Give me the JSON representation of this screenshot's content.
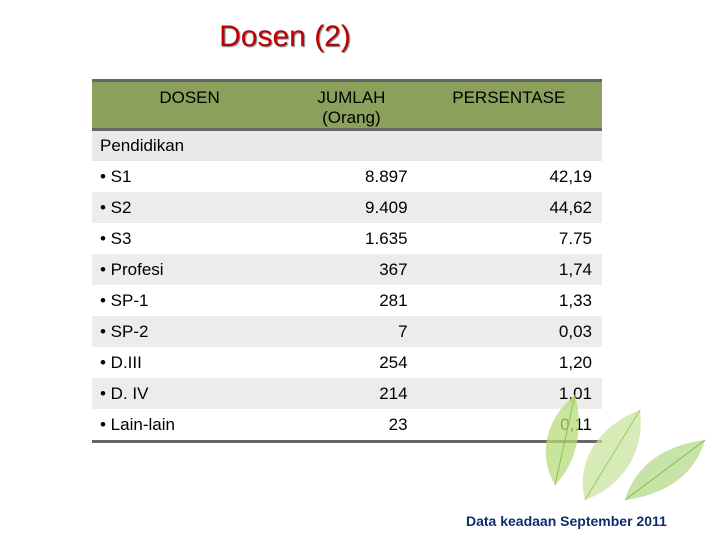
{
  "title": "Dosen (2)",
  "table": {
    "headers": [
      "DOSEN",
      "JUMLAH (Orang)",
      "PERSENTASE"
    ],
    "subheader": "Pendidikan",
    "rows": [
      {
        "label": "• S1",
        "jumlah": "8.897",
        "persen": "42,19"
      },
      {
        "label": "• S2",
        "jumlah": "9.409",
        "persen": "44,62"
      },
      {
        "label": "• S3",
        "jumlah": "1.635",
        "persen": "7.75"
      },
      {
        "label": "• Profesi",
        "jumlah": "367",
        "persen": "1,74"
      },
      {
        "label": "• SP-1",
        "jumlah": "281",
        "persen": "1,33"
      },
      {
        "label": "• SP-2",
        "jumlah": "7",
        "persen": "0,03"
      },
      {
        "label": "• D.III",
        "jumlah": "254",
        "persen": "1,20"
      },
      {
        "label": "• D. IV",
        "jumlah": "214",
        "persen": "1,01"
      },
      {
        "label": "• Lain-lain",
        "jumlah": "23",
        "persen": "0,11"
      }
    ]
  },
  "footer": "Data keadaan September 2011",
  "colors": {
    "title": "#c00000",
    "header_bg": "#8aa05b",
    "footer": "#0f2c6e"
  }
}
